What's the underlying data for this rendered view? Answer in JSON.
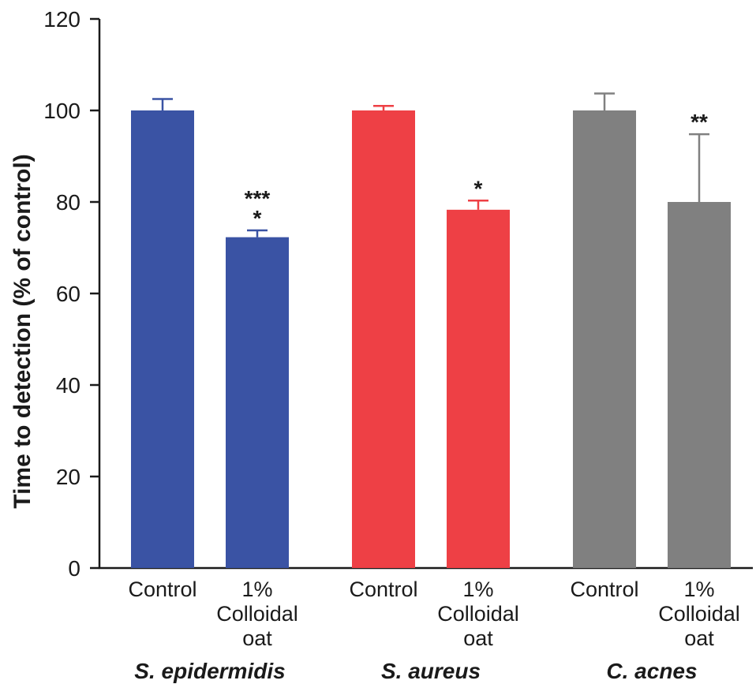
{
  "chart_data": {
    "type": "bar",
    "ylabel": "Time to detection (% of control)",
    "ylim": [
      0,
      120
    ],
    "yticks": [
      0,
      20,
      40,
      60,
      80,
      100,
      120
    ],
    "grid": false,
    "colors": {
      "S. epidermidis": "#3a53a4",
      "S. aureus": "#ee4045",
      "C. acnes": "#808080"
    },
    "groups": [
      {
        "name": "S. epidermidis",
        "bars": [
          {
            "label_lines": [
              "Control"
            ],
            "value": 100,
            "error": 2.5,
            "significance": []
          },
          {
            "label_lines": [
              "1%",
              "Colloidal",
              "oat"
            ],
            "value": 72.3,
            "error": 1.5,
            "significance": [
              "***",
              "*"
            ]
          }
        ]
      },
      {
        "name": "S. aureus",
        "bars": [
          {
            "label_lines": [
              "Control"
            ],
            "value": 100,
            "error": 1.0,
            "significance": []
          },
          {
            "label_lines": [
              "1%",
              "Colloidal",
              "oat"
            ],
            "value": 78.3,
            "error": 2.0,
            "significance": [
              "*"
            ]
          }
        ]
      },
      {
        "name": "C. acnes",
        "bars": [
          {
            "label_lines": [
              "Control"
            ],
            "value": 100,
            "error": 3.7,
            "significance": []
          },
          {
            "label_lines": [
              "1%",
              "Colloidal",
              "oat"
            ],
            "value": 80,
            "error": 14.8,
            "significance": [
              "**"
            ]
          }
        ]
      }
    ]
  }
}
